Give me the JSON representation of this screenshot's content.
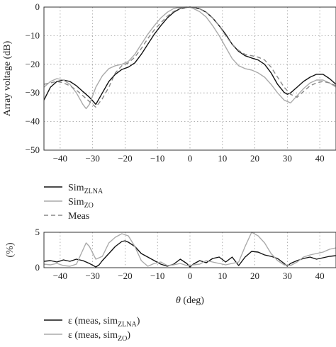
{
  "chart_data": [
    {
      "type": "line",
      "ylabel": "Array voltage (dB)",
      "xlim": [
        -45,
        45
      ],
      "ylim": [
        -50,
        0
      ],
      "xticks": [
        -40,
        -30,
        -20,
        -10,
        0,
        10,
        20,
        30,
        40
      ],
      "yticks": [
        0,
        -10,
        -20,
        -30,
        -40,
        -50
      ],
      "xtick_labels": [
        "−40",
        "−30",
        "−20",
        "−10",
        "0",
        "10",
        "20",
        "30",
        "40"
      ],
      "ytick_labels": [
        "0",
        "−10",
        "−20",
        "−30",
        "−40",
        "−50"
      ],
      "grid": true,
      "legend_position": "below",
      "series": [
        {
          "name": "Sim",
          "name_sub": "ZLNA",
          "color": "#111111",
          "style": "solid",
          "x": [
            -45,
            -43,
            -41,
            -39,
            -37,
            -35,
            -33,
            -31,
            -29,
            -27,
            -25,
            -23,
            -21,
            -19,
            -17,
            -15,
            -13,
            -11,
            -9,
            -7,
            -5,
            -3,
            -1,
            0,
            1,
            3,
            5,
            7,
            9,
            11,
            13,
            15,
            17,
            19,
            21,
            23,
            25,
            27,
            29,
            30,
            31,
            33,
            35,
            37,
            39,
            41,
            43,
            45
          ],
          "y": [
            -32.5,
            -28,
            -26,
            -25.5,
            -26,
            -27.5,
            -29.5,
            -31.5,
            -34,
            -30,
            -26,
            -23.5,
            -21.8,
            -21,
            -19.5,
            -16.5,
            -13,
            -9.5,
            -6.5,
            -3.8,
            -1.8,
            -0.5,
            -0.1,
            0,
            -0.1,
            -0.6,
            -1.8,
            -3.8,
            -6.5,
            -9.5,
            -13,
            -15.5,
            -17,
            -17.8,
            -18.5,
            -20,
            -23,
            -27,
            -29.8,
            -30.5,
            -30,
            -28,
            -26,
            -24.5,
            -23.5,
            -23.5,
            -25,
            -27
          ]
        },
        {
          "name": "Sim",
          "name_sub": "ZO",
          "color": "#aaaaaa",
          "style": "solid",
          "x": [
            -45,
            -43,
            -41,
            -39,
            -37,
            -35,
            -33,
            -32,
            -31,
            -29,
            -27,
            -25,
            -23,
            -21,
            -19,
            -17,
            -15,
            -13,
            -11,
            -9,
            -7,
            -5,
            -3,
            -1,
            0,
            1,
            3,
            5,
            7,
            9,
            11,
            13,
            15,
            17,
            19,
            21,
            23,
            25,
            27,
            29,
            31,
            33,
            35,
            37,
            39,
            41,
            43,
            45
          ],
          "y": [
            -28,
            -26,
            -25,
            -25.5,
            -27,
            -30,
            -34,
            -35.5,
            -34,
            -28,
            -24,
            -21.5,
            -20.5,
            -20,
            -19,
            -16.5,
            -13,
            -9.5,
            -6.5,
            -3.8,
            -1.8,
            -0.5,
            -0.1,
            0,
            -0.1,
            -0.5,
            -1.6,
            -3.5,
            -6.5,
            -10,
            -14,
            -18,
            -20.5,
            -21.5,
            -22,
            -23,
            -24.5,
            -27,
            -30,
            -32.5,
            -33.5,
            -31,
            -28.5,
            -26.5,
            -25.5,
            -25.5,
            -26.5,
            -28
          ]
        },
        {
          "name": "Meas",
          "name_sub": "",
          "color": "#888888",
          "style": "dashed",
          "x": [
            -45,
            -43,
            -41,
            -39,
            -37,
            -35,
            -33,
            -31,
            -29,
            -27,
            -25,
            -23,
            -21,
            -19,
            -17,
            -15,
            -13,
            -11,
            -9,
            -7,
            -5,
            -3,
            -1,
            0,
            1,
            3,
            5,
            7,
            9,
            11,
            13,
            15,
            17,
            19,
            21,
            23,
            25,
            27,
            29,
            31,
            33,
            35,
            37,
            39,
            41,
            43,
            45
          ],
          "y": [
            -27,
            -26.5,
            -26,
            -26.5,
            -27.5,
            -29,
            -31,
            -33,
            -35,
            -32,
            -28,
            -23,
            -20.5,
            -19.5,
            -17.5,
            -14.5,
            -11,
            -8,
            -5.5,
            -3.2,
            -1.5,
            -0.4,
            -0.1,
            0,
            -0.1,
            -0.6,
            -1.8,
            -3.8,
            -6.5,
            -10,
            -13,
            -15.2,
            -16.5,
            -17,
            -17.5,
            -18.5,
            -21,
            -24.5,
            -28,
            -30.5,
            -31.5,
            -29.5,
            -27.5,
            -26.5,
            -26,
            -26.5,
            -27.5
          ]
        }
      ]
    },
    {
      "type": "line",
      "xlabel_symbol": "θ",
      "xlabel_unit": " (deg)",
      "ylabel": "(%)",
      "xlim": [
        -45,
        45
      ],
      "ylim": [
        0,
        5
      ],
      "xticks": [
        -40,
        -30,
        -20,
        -10,
        0,
        10,
        20,
        30,
        40
      ],
      "yticks": [
        0,
        5
      ],
      "xtick_labels": [
        "−40",
        "−30",
        "−20",
        "−10",
        "0",
        "10",
        "20",
        "30",
        "40"
      ],
      "ytick_labels": [
        "0",
        "5"
      ],
      "grid": true,
      "legend_position": "below",
      "series": [
        {
          "name": "ε (meas, sim",
          "name_sub": "ZLNA",
          "name_tail": ")",
          "color": "#111111",
          "style": "solid",
          "x": [
            -45,
            -43,
            -41,
            -39,
            -37,
            -35,
            -33,
            -31,
            -29,
            -28,
            -27,
            -25,
            -23,
            -21,
            -20,
            -19,
            -17,
            -15,
            -13,
            -11,
            -9,
            -7,
            -5,
            -3,
            -1,
            0,
            1,
            3,
            5,
            7,
            9,
            11,
            13,
            15,
            17,
            19,
            21,
            23,
            25,
            27,
            29,
            30,
            31,
            33,
            35,
            37,
            39,
            41,
            43,
            45
          ],
          "y": [
            0.9,
            1.0,
            0.8,
            1.1,
            0.9,
            1.2,
            1.0,
            0.6,
            0.1,
            0.4,
            1.0,
            2.0,
            3.0,
            3.7,
            3.8,
            3.6,
            3.0,
            2.0,
            1.5,
            1.0,
            0.5,
            0.2,
            0.5,
            1.2,
            0.6,
            0.1,
            0.5,
            1.0,
            0.7,
            1.3,
            1.5,
            0.8,
            1.5,
            0.3,
            1.5,
            2.3,
            2.2,
            1.8,
            1.6,
            1.3,
            0.6,
            0.2,
            0.6,
            1.0,
            1.3,
            1.5,
            1.2,
            1.4,
            1.6,
            1.7
          ]
        },
        {
          "name": "ε (meas, sim",
          "name_sub": "ZO",
          "name_tail": ")",
          "color": "#aaaaaa",
          "style": "solid",
          "x": [
            -45,
            -43,
            -41,
            -39,
            -37,
            -35,
            -33,
            -32,
            -31,
            -29,
            -27,
            -25,
            -23,
            -21,
            -19,
            -17,
            -15,
            -13,
            -11,
            -9,
            -7,
            -5,
            -3,
            -1,
            0,
            1,
            3,
            5,
            7,
            9,
            11,
            13,
            15,
            17,
            19,
            21,
            23,
            25,
            27,
            29,
            31,
            33,
            35,
            37,
            39,
            41,
            43,
            45
          ],
          "y": [
            0.5,
            0.4,
            0.6,
            0.3,
            0.2,
            0.5,
            2.5,
            3.5,
            3.0,
            1.2,
            1.6,
            3.5,
            4.3,
            4.8,
            4.5,
            3.0,
            1.0,
            0.2,
            0.6,
            0.8,
            0.3,
            0.4,
            0.6,
            0.3,
            0.3,
            0.4,
            0.5,
            1.0,
            0.8,
            0.6,
            0.4,
            0.6,
            0.8,
            3.0,
            5.0,
            4.5,
            3.5,
            2.0,
            1.0,
            0.4,
            0.3,
            0.8,
            1.5,
            1.8,
            2.0,
            2.2,
            2.6,
            2.8
          ]
        }
      ]
    }
  ]
}
